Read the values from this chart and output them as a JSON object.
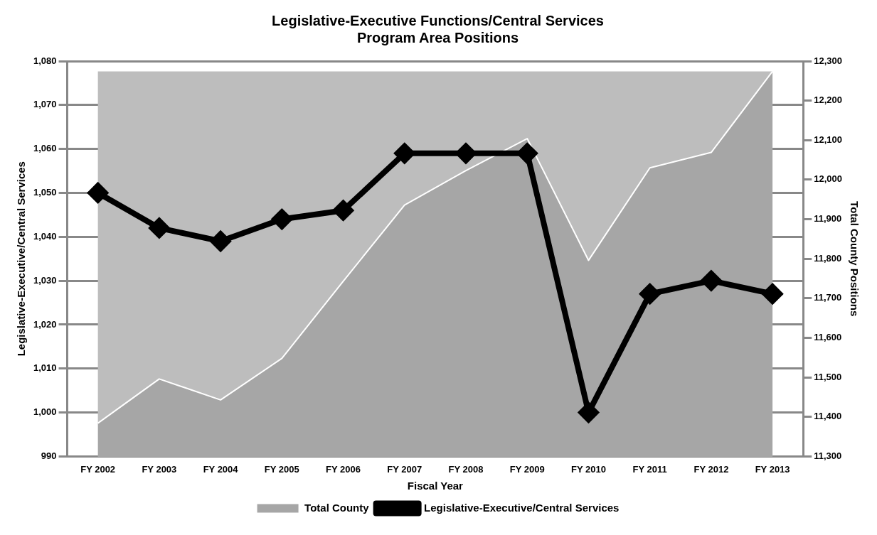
{
  "chart_data": {
    "type": "line",
    "title": "Legislative-Executive Functions/Central Services\nProgram Area Positions",
    "xlabel": "Fiscal Year",
    "ylabel": "Legislative-Executive/Central Services",
    "y2label": "Total County Positions",
    "categories": [
      "FY 2002",
      "FY 2003",
      "FY 2004",
      "FY 2005",
      "FY 2006",
      "FY 2007",
      "FY 2008",
      "FY 2009",
      "FY 2010",
      "FY 2011",
      "FY 2012",
      "FY 2013"
    ],
    "series": [
      {
        "name": "Total County",
        "type": "area",
        "axis": "y2",
        "color": "#a6a6a6",
        "values": [
          11384,
          11496,
          11443,
          11548,
          11743,
          11936,
          12023,
          12104,
          11796,
          12030,
          12069,
          12274
        ]
      },
      {
        "name": "Legislative-Executive/Central Services",
        "type": "line",
        "color": "#000000",
        "marker": "diamond",
        "values": [
          1050,
          1042,
          1039,
          1044,
          1046,
          1059,
          1059,
          1059,
          1000,
          1027,
          1030,
          1027
        ]
      }
    ],
    "ylim": [
      990,
      1080
    ],
    "yticks": [
      {
        "value": 990,
        "label": "990"
      },
      {
        "value": 1000,
        "label": "1,000"
      },
      {
        "value": 1010,
        "label": "1,010"
      },
      {
        "value": 1020,
        "label": "1,020"
      },
      {
        "value": 1030,
        "label": "1,030"
      },
      {
        "value": 1040,
        "label": "1,040"
      },
      {
        "value": 1050,
        "label": "1,050"
      },
      {
        "value": 1060,
        "label": "1,060"
      },
      {
        "value": 1070,
        "label": "1,070"
      },
      {
        "value": 1080,
        "label": "1,080"
      }
    ],
    "y2lim": [
      11300,
      12300
    ],
    "y2ticks": [
      {
        "value": 11300,
        "label": "11,300"
      },
      {
        "value": 11400,
        "label": "11,400"
      },
      {
        "value": 11500,
        "label": "11,500"
      },
      {
        "value": 11600,
        "label": "11,600"
      },
      {
        "value": 11700,
        "label": "11,700"
      },
      {
        "value": 11800,
        "label": "11,800"
      },
      {
        "value": 11900,
        "label": "11,900"
      },
      {
        "value": 12000,
        "label": "12,000"
      },
      {
        "value": 12100,
        "label": "12,100"
      },
      {
        "value": 12200,
        "label": "12,200"
      },
      {
        "value": 12300,
        "label": "12,300"
      }
    ],
    "grid": "y",
    "legend": "bottom"
  }
}
